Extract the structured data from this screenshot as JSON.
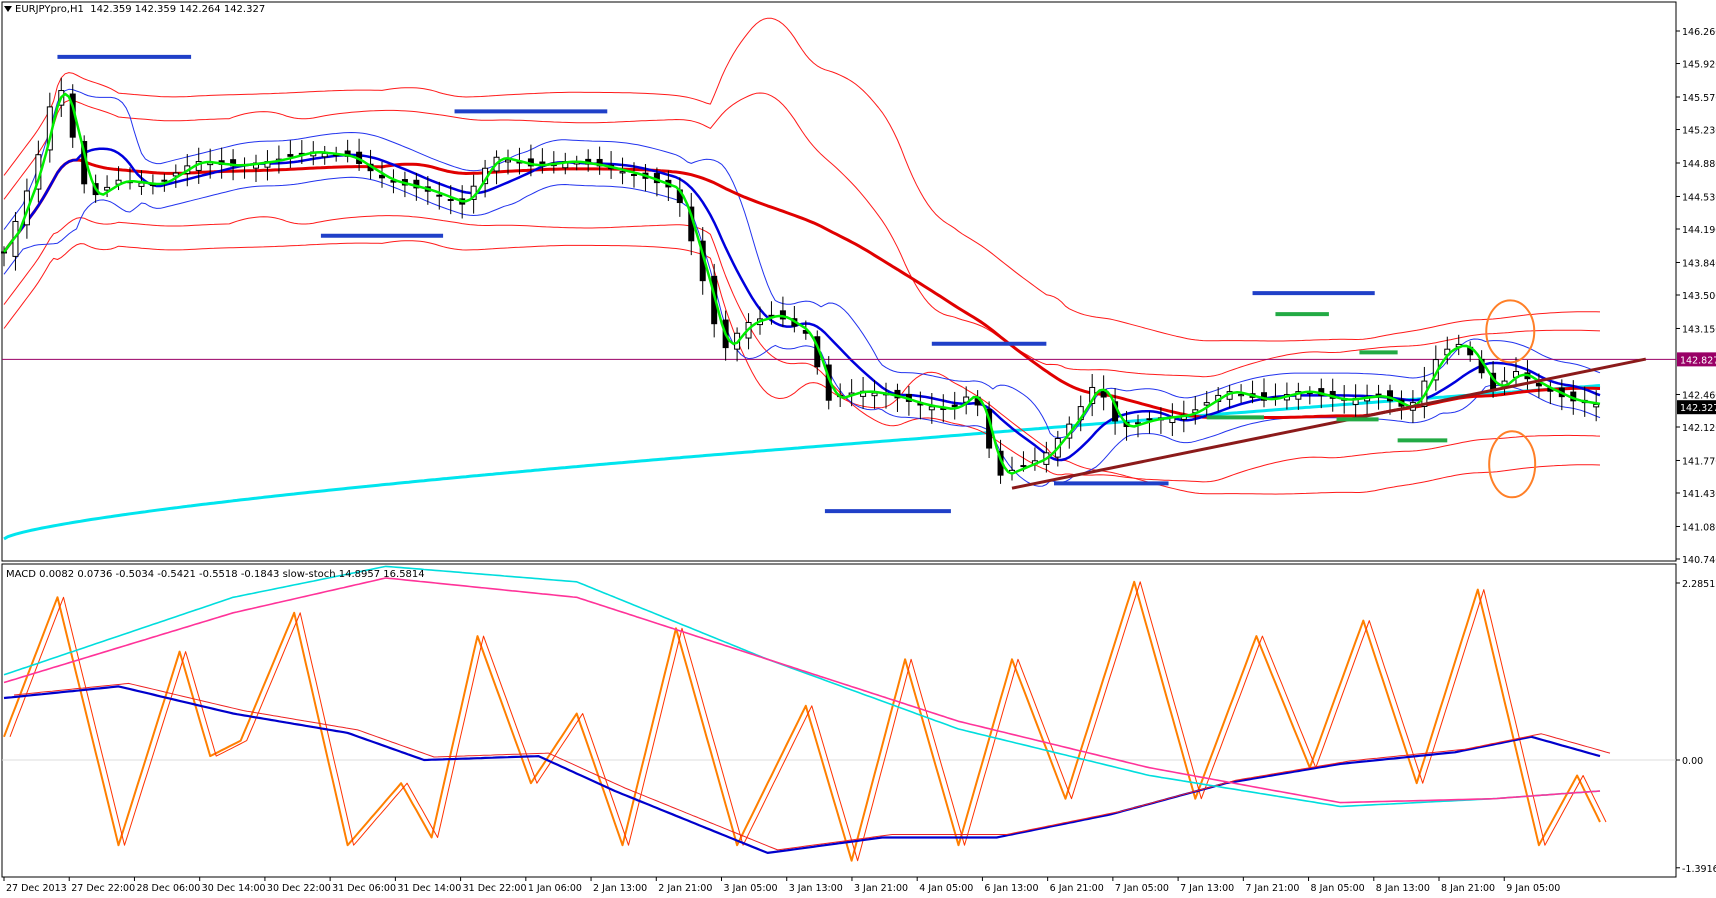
{
  "header": {
    "symbol_label": "EURJPYpro,H1",
    "ohlc": "142.359 142.359 142.264 142.327",
    "indicator_label": "MACD 0.0082 0.0736 -0.5034 -0.5421 -0.5518 -0.1843  slow-stoch 14.8957 16.5814"
  },
  "price_axis": {
    "ticks": [
      "146.260",
      "145.920",
      "145.570",
      "145.230",
      "144.880",
      "144.530",
      "144.190",
      "143.840",
      "143.500",
      "143.150",
      "142.460",
      "142.120",
      "141.770",
      "141.430",
      "141.080",
      "140.740"
    ],
    "hline_label": "142.827",
    "current_label": "142.327"
  },
  "indicator_axis": {
    "ticks": [
      "2.2851",
      "0.00",
      "-1.3916"
    ]
  },
  "time_axis": {
    "labels": [
      "27 Dec 2013",
      "27 Dec 22:00",
      "28 Dec 06:00",
      "30 Dec 14:00",
      "30 Dec 22:00",
      "31 Dec 06:00",
      "31 Dec 14:00",
      "31 Dec 22:00",
      "1 Jan 06:00",
      "2 Jan 13:00",
      "2 Jan 21:00",
      "3 Jan 05:00",
      "3 Jan 13:00",
      "3 Jan 21:00",
      "4 Jan 05:00",
      "6 Jan 13:00",
      "6 Jan 21:00",
      "7 Jan 05:00",
      "7 Jan 13:00",
      "7 Jan 21:00",
      "8 Jan 05:00",
      "8 Jan 13:00",
      "8 Jan 21:00",
      "9 Jan 05:00"
    ]
  },
  "colors": {
    "background": "#ffffff",
    "candle": "#000000",
    "ma_fast": "#00ee00",
    "ma_mid": "#0000dd",
    "ma_slow": "#e00000",
    "ma_long": "#00e5ee",
    "envelope_red": "#ff1a1a",
    "envelope_blue": "#2233ee",
    "sr_blue": "#2040c8",
    "sr_green": "#22aa44",
    "trendline": "#8b1a1a",
    "hline": "#990066",
    "circle": "#ff7f27",
    "stoch_main": "#ff7f00",
    "stoch_signal": "#ff3300",
    "macd_main": "#0000cc",
    "macd_signal": "#ee2222",
    "macd_slow": "#00dddd",
    "macd_slow_signal": "#ff3399"
  },
  "chart_data": [
    {
      "type": "candlestick",
      "title": "EURJPYpro,H1",
      "ylim": [
        140.74,
        146.26
      ],
      "price_line": 142.827,
      "close_last": 142.327,
      "key_levels": {
        "resistance": [
          145.99,
          145.42,
          142.99,
          143.52
        ],
        "support": [
          144.12,
          141.53,
          141.24
        ],
        "green_levels": [
          143.3,
          142.9,
          142.2,
          141.98,
          141.98
        ]
      },
      "close_path": [
        [
          0,
          143.95
        ],
        [
          8,
          144.8
        ],
        [
          14,
          145.8
        ],
        [
          22,
          144.5
        ],
        [
          30,
          144.7
        ],
        [
          40,
          144.65
        ],
        [
          50,
          144.9
        ],
        [
          60,
          144.85
        ],
        [
          70,
          144.9
        ],
        [
          80,
          145.0
        ],
        [
          90,
          144.95
        ],
        [
          100,
          144.7
        ],
        [
          110,
          144.6
        ],
        [
          120,
          144.45
        ],
        [
          128,
          144.95
        ],
        [
          138,
          144.85
        ],
        [
          148,
          144.9
        ],
        [
          156,
          144.85
        ],
        [
          166,
          144.75
        ],
        [
          176,
          144.6
        ],
        [
          182,
          143.8
        ],
        [
          188,
          142.9
        ],
        [
          194,
          143.2
        ],
        [
          202,
          143.3
        ],
        [
          210,
          143.1
        ],
        [
          216,
          142.4
        ],
        [
          224,
          142.5
        ],
        [
          232,
          142.45
        ],
        [
          240,
          142.35
        ],
        [
          248,
          142.3
        ],
        [
          254,
          142.5
        ],
        [
          260,
          141.6
        ],
        [
          266,
          141.7
        ],
        [
          272,
          141.8
        ],
        [
          280,
          142.2
        ],
        [
          286,
          142.6
        ],
        [
          292,
          142.1
        ],
        [
          300,
          142.2
        ],
        [
          310,
          142.25
        ],
        [
          320,
          142.5
        ],
        [
          330,
          142.4
        ],
        [
          340,
          142.5
        ],
        [
          350,
          142.4
        ],
        [
          360,
          142.45
        ],
        [
          368,
          142.3
        ],
        [
          376,
          142.9
        ],
        [
          382,
          143.0
        ],
        [
          390,
          142.5
        ],
        [
          396,
          142.7
        ],
        [
          402,
          142.55
        ],
        [
          410,
          142.4
        ],
        [
          418,
          142.35
        ]
      ]
    },
    {
      "type": "line",
      "title": "MACD / slow-stoch",
      "ylim": [
        -1.3916,
        2.2851
      ],
      "series": [
        {
          "name": "slow-stoch main",
          "values": [
            [
              0,
              0.3
            ],
            [
              14,
              2.1
            ],
            [
              30,
              -1.1
            ],
            [
              46,
              1.4
            ],
            [
              54,
              0.05
            ],
            [
              62,
              0.25
            ],
            [
              76,
              1.9
            ],
            [
              90,
              -1.1
            ],
            [
              104,
              -0.3
            ],
            [
              112,
              -1.0
            ],
            [
              124,
              1.6
            ],
            [
              138,
              -0.3
            ],
            [
              150,
              0.6
            ],
            [
              162,
              -1.1
            ],
            [
              176,
              1.7
            ],
            [
              192,
              -1.1
            ],
            [
              210,
              0.7
            ],
            [
              222,
              -1.3
            ],
            [
              236,
              1.3
            ],
            [
              250,
              -1.1
            ],
            [
              264,
              1.3
            ],
            [
              278,
              -0.5
            ],
            [
              296,
              2.3
            ],
            [
              312,
              -0.5
            ],
            [
              328,
              1.6
            ],
            [
              342,
              -0.1
            ],
            [
              356,
              1.8
            ],
            [
              370,
              -0.3
            ],
            [
              386,
              2.2
            ],
            [
              402,
              -1.1
            ],
            [
              412,
              -0.2
            ],
            [
              418,
              -0.8
            ]
          ]
        },
        {
          "name": "MACD main",
          "values": [
            [
              0,
              0.8
            ],
            [
              30,
              0.95
            ],
            [
              60,
              0.6
            ],
            [
              90,
              0.35
            ],
            [
              110,
              0.0
            ],
            [
              140,
              0.05
            ],
            [
              160,
              -0.4
            ],
            [
              200,
              -1.2
            ],
            [
              230,
              -1.0
            ],
            [
              260,
              -1.0
            ],
            [
              290,
              -0.7
            ],
            [
              320,
              -0.3
            ],
            [
              350,
              -0.05
            ],
            [
              380,
              0.1
            ],
            [
              400,
              0.3
            ],
            [
              418,
              0.05
            ]
          ]
        },
        {
          "name": "MACD slow",
          "values": [
            [
              0,
              1.1
            ],
            [
              60,
              2.1
            ],
            [
              100,
              2.5
            ],
            [
              150,
              2.3
            ],
            [
              200,
              1.3
            ],
            [
              250,
              0.4
            ],
            [
              300,
              -0.2
            ],
            [
              350,
              -0.6
            ],
            [
              390,
              -0.5
            ],
            [
              418,
              -0.4
            ]
          ]
        },
        {
          "name": "MACD slow signal",
          "values": [
            [
              0,
              1.0
            ],
            [
              60,
              1.9
            ],
            [
              100,
              2.35
            ],
            [
              150,
              2.1
            ],
            [
              200,
              1.3
            ],
            [
              250,
              0.5
            ],
            [
              300,
              -0.1
            ],
            [
              350,
              -0.55
            ],
            [
              390,
              -0.5
            ],
            [
              418,
              -0.4
            ]
          ]
        }
      ]
    }
  ]
}
